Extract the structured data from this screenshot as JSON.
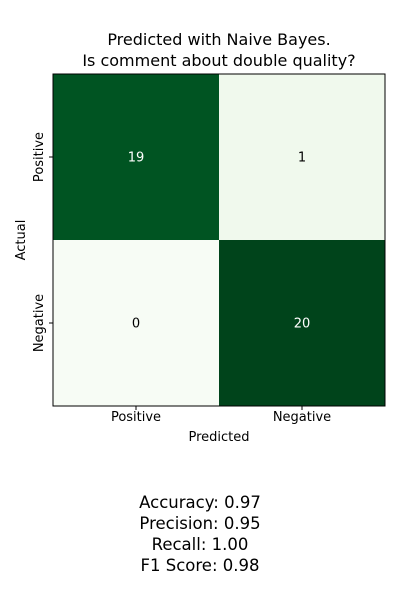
{
  "chart_data": {
    "type": "heatmap",
    "title_lines": [
      "Predicted with Naive Bayes.",
      "Is comment about double quality?"
    ],
    "xlabel": "Predicted",
    "ylabel": "Actual",
    "x_categories": [
      "Positive",
      "Negative"
    ],
    "y_categories": [
      "Positive",
      "Negative"
    ],
    "matrix": [
      [
        19,
        1
      ],
      [
        0,
        20
      ]
    ],
    "colormap": "Greens",
    "color_low": "#f7fcf5",
    "color_high": "#00441b",
    "legend": "none",
    "grid": false
  },
  "metrics": {
    "accuracy": "Accuracy: 0.97",
    "precision": "Precision: 0.95",
    "recall": "Recall: 1.00",
    "f1": "F1 Score: 0.98"
  }
}
